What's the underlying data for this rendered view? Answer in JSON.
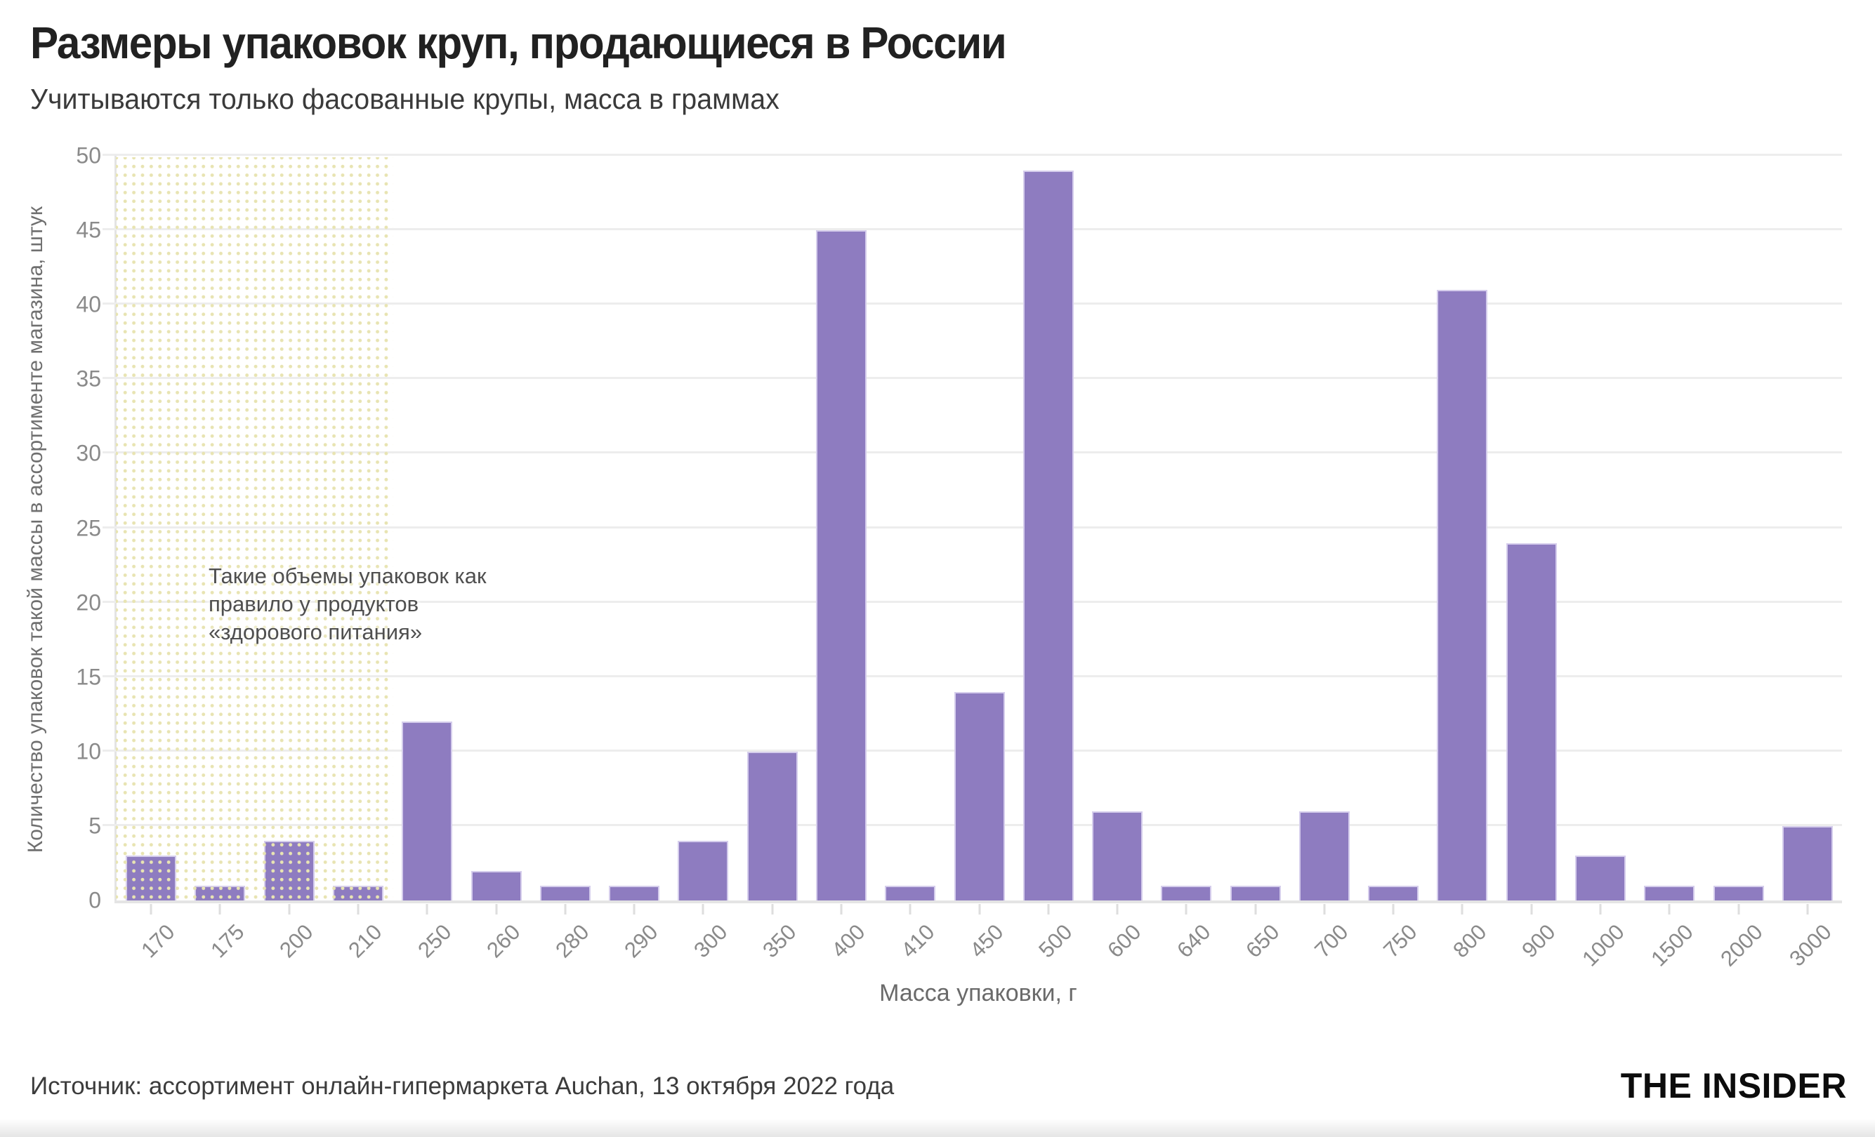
{
  "header": {
    "title": "Размеры упаковок круп, продающиеся в России",
    "subtitle": "Учитываются только фасованные крупы, масса в граммах"
  },
  "annotation": {
    "text": "Такие объемы упаковок как\nправило у продуктов\n«здорового питания»"
  },
  "chart_data": {
    "type": "bar",
    "title": "Размеры упаковок круп, продающиеся в России",
    "subtitle": "Учитываются только фасованные крупы, масса в граммах",
    "categories": [
      "170",
      "175",
      "200",
      "210",
      "250",
      "260",
      "280",
      "290",
      "300",
      "350",
      "400",
      "410",
      "450",
      "500",
      "600",
      "640",
      "650",
      "700",
      "750",
      "800",
      "900",
      "1000",
      "1500",
      "2000",
      "3000"
    ],
    "values": [
      3,
      1,
      4,
      1,
      12,
      2,
      1,
      1,
      4,
      10,
      45,
      1,
      14,
      49,
      6,
      1,
      1,
      6,
      1,
      41,
      24,
      3,
      1,
      1,
      5
    ],
    "xlabel": "Масса упаковки, г",
    "ylabel": "Количество упаковок такой массы в ассортименте магазина, штук",
    "ylim": [
      0,
      50
    ],
    "yticks": [
      0,
      5,
      10,
      15,
      20,
      25,
      30,
      35,
      40,
      45,
      50
    ],
    "grid": true,
    "legend_position": "none",
    "bar_color": "#8e7cc0",
    "bar_edge_color": "#d5cdec",
    "gridline_color": "#ededed",
    "highlight_region": {
      "categories": [
        "170",
        "175",
        "200",
        "210"
      ],
      "style": "yellow-dot-pattern",
      "dot_color": "#e8e4b2",
      "note": "Такие объемы упаковок как правило у продуктов «здорового питания»"
    }
  },
  "footer": {
    "source": "Источник: ассортимент онлайн-гипермаркета Auchan, 13 октября 2022 года",
    "logo": "THE INSIDER"
  }
}
